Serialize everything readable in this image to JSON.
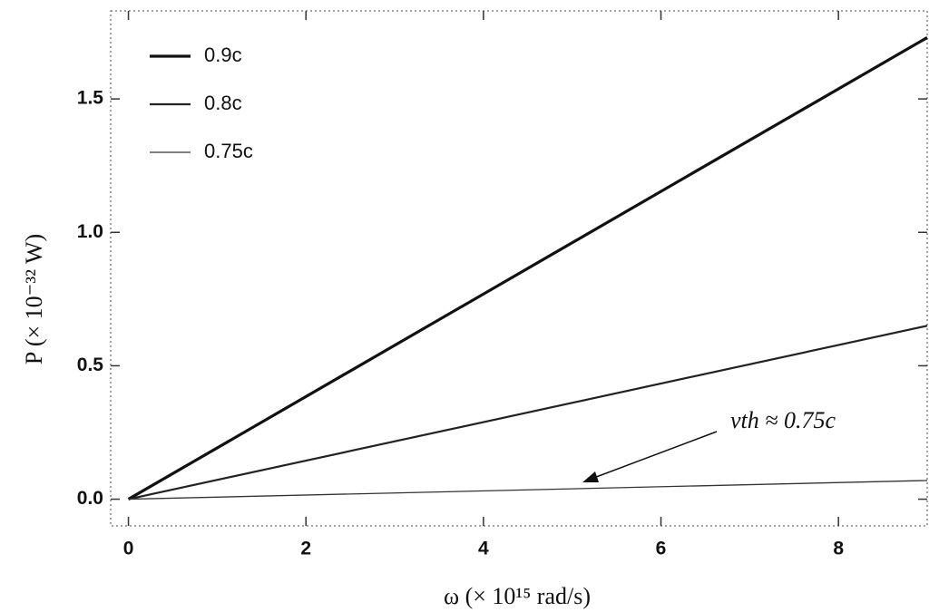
{
  "chart_data": {
    "type": "line",
    "xlabel": "ω (× 10¹⁵ rad/s)",
    "ylabel": "P (× 10⁻³² W)",
    "annotation": "vth ≈ 0.75c",
    "x": [
      0,
      9
    ],
    "series": [
      {
        "name": "0.9c",
        "color": "#111111",
        "values": [
          0,
          1.73
        ]
      },
      {
        "name": "0.8c",
        "color": "#222222",
        "values": [
          0,
          0.65
        ]
      },
      {
        "name": "0.75c",
        "color": "#333333",
        "values": [
          0,
          0.07
        ]
      }
    ],
    "xlim": [
      -0.2,
      9.0
    ],
    "ylim": [
      -0.1,
      1.83
    ],
    "xticks": [
      0,
      2,
      4,
      6,
      8
    ],
    "yticks": [
      {
        "value": 0,
        "label": "0.0"
      },
      {
        "value": 0.5,
        "label": "0.5"
      },
      {
        "value": 1.0,
        "label": "1.0"
      },
      {
        "value": 1.5,
        "label": "1.5"
      }
    ],
    "grid": false,
    "legend": "upper-left"
  }
}
